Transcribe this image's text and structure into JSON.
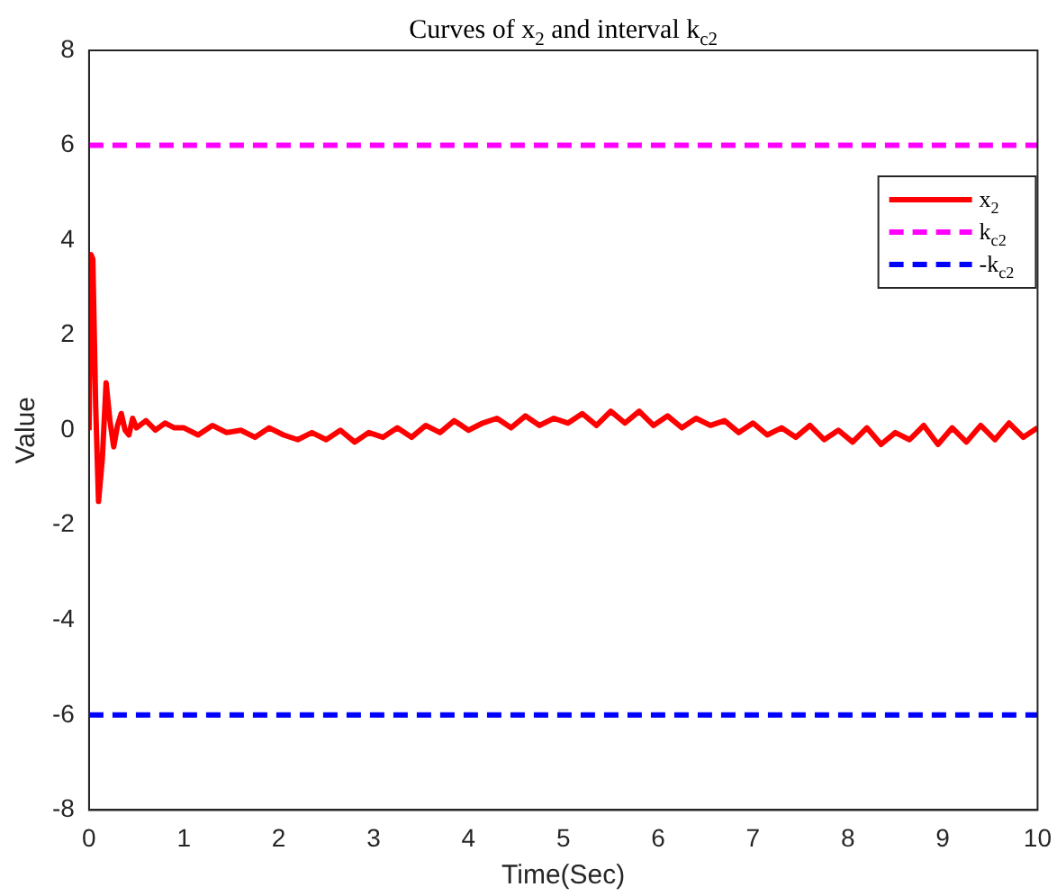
{
  "chart_data": {
    "type": "line",
    "title": "Curves of x$_{2}$ and interval k$_{c2}$",
    "xlabel": "Time(Sec)",
    "ylabel": "Value",
    "xlim": [
      0,
      10
    ],
    "xticks": [
      0,
      1,
      2,
      3,
      4,
      5,
      6,
      7,
      8,
      9,
      10
    ],
    "ylim": [
      -8,
      8
    ],
    "yticks": [
      -8,
      -6,
      -4,
      -2,
      0,
      2,
      4,
      6,
      8
    ],
    "grid": false,
    "legend": "top right",
    "marker": "none",
    "series": [
      {
        "name": "x$_{2}$",
        "color": "#ff0000",
        "line_style": "solid",
        "x": [
          0,
          0.02,
          0.04,
          0.07,
          0.1,
          0.14,
          0.18,
          0.22,
          0.26,
          0.3,
          0.34,
          0.38,
          0.42,
          0.46,
          0.5,
          0.6,
          0.7,
          0.8,
          0.9,
          1.0,
          1.15,
          1.3,
          1.45,
          1.6,
          1.75,
          1.9,
          2.05,
          2.2,
          2.35,
          2.5,
          2.65,
          2.8,
          2.95,
          3.1,
          3.25,
          3.4,
          3.55,
          3.7,
          3.85,
          4.0,
          4.15,
          4.3,
          4.45,
          4.6,
          4.75,
          4.9,
          5.05,
          5.2,
          5.35,
          5.5,
          5.65,
          5.8,
          5.95,
          6.1,
          6.25,
          6.4,
          6.55,
          6.7,
          6.85,
          7.0,
          7.15,
          7.3,
          7.45,
          7.6,
          7.75,
          7.9,
          8.05,
          8.2,
          8.35,
          8.5,
          8.65,
          8.8,
          8.95,
          9.1,
          9.25,
          9.4,
          9.55,
          9.7,
          9.85,
          10.0
        ],
        "values": [
          0,
          3.7,
          3.6,
          0.5,
          -1.5,
          -0.6,
          1.0,
          0.2,
          -0.35,
          0.1,
          0.35,
          0.0,
          -0.1,
          0.25,
          0.05,
          0.2,
          0.0,
          0.15,
          0.05,
          0.05,
          -0.1,
          0.1,
          -0.05,
          0.0,
          -0.15,
          0.05,
          -0.1,
          -0.2,
          -0.05,
          -0.2,
          0.0,
          -0.25,
          -0.05,
          -0.15,
          0.05,
          -0.15,
          0.1,
          -0.05,
          0.2,
          0.0,
          0.15,
          0.25,
          0.05,
          0.3,
          0.1,
          0.25,
          0.15,
          0.35,
          0.1,
          0.4,
          0.15,
          0.4,
          0.1,
          0.3,
          0.05,
          0.25,
          0.1,
          0.2,
          -0.05,
          0.15,
          -0.1,
          0.05,
          -0.15,
          0.1,
          -0.2,
          0.0,
          -0.25,
          0.05,
          -0.3,
          -0.05,
          -0.2,
          0.1,
          -0.3,
          0.05,
          -0.25,
          0.1,
          -0.2,
          0.15,
          -0.15,
          0.05
        ]
      },
      {
        "name": "k$_{c2}$",
        "color": "#ff00ff",
        "line_style": "dashed",
        "x": [
          0,
          10
        ],
        "values": [
          6,
          6
        ]
      },
      {
        "name": "-k$_{c2}$",
        "color": "#0000ff",
        "line_style": "dashed",
        "x": [
          0,
          10
        ],
        "values": [
          -6,
          -6
        ]
      }
    ]
  }
}
